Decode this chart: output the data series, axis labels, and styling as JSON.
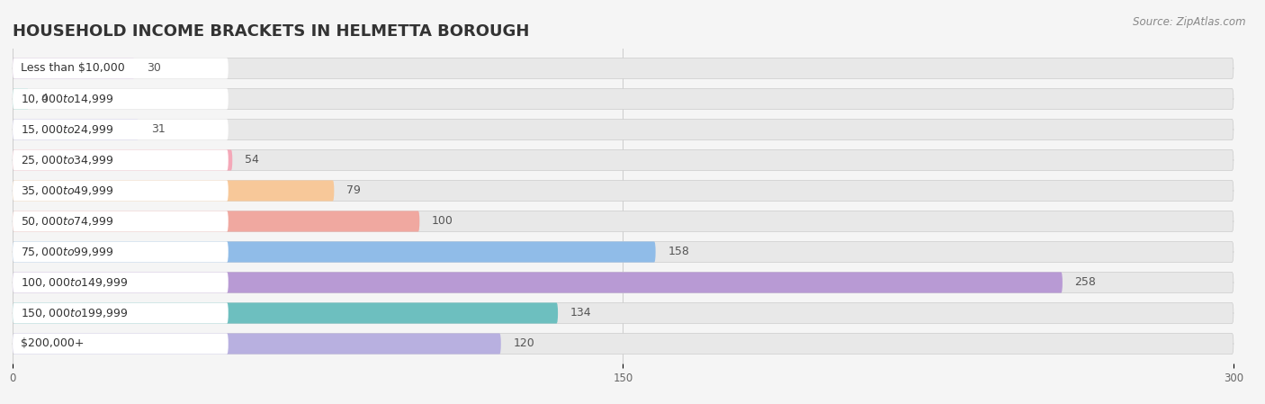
{
  "title": "HOUSEHOLD INCOME BRACKETS IN HELMETTA BOROUGH",
  "source": "Source: ZipAtlas.com",
  "categories": [
    "Less than $10,000",
    "$10,000 to $14,999",
    "$15,000 to $24,999",
    "$25,000 to $34,999",
    "$35,000 to $49,999",
    "$50,000 to $74,999",
    "$75,000 to $99,999",
    "$100,000 to $149,999",
    "$150,000 to $199,999",
    "$200,000+"
  ],
  "values": [
    30,
    4,
    31,
    54,
    79,
    100,
    158,
    258,
    134,
    120
  ],
  "bar_colors": [
    "#c9a8d4",
    "#7ecec4",
    "#b3aee0",
    "#f4a8b8",
    "#f7c899",
    "#f0a8a0",
    "#90bce8",
    "#b89ad4",
    "#6dbfbf",
    "#b8b0e0"
  ],
  "background_color": "#f5f5f5",
  "bar_bg_color": "#e8e8e8",
  "bar_bg_outline": "#d8d8d8",
  "xlim": [
    0,
    300
  ],
  "xticks": [
    0,
    150,
    300
  ],
  "title_fontsize": 13,
  "label_fontsize": 9,
  "value_fontsize": 9,
  "source_fontsize": 8.5
}
